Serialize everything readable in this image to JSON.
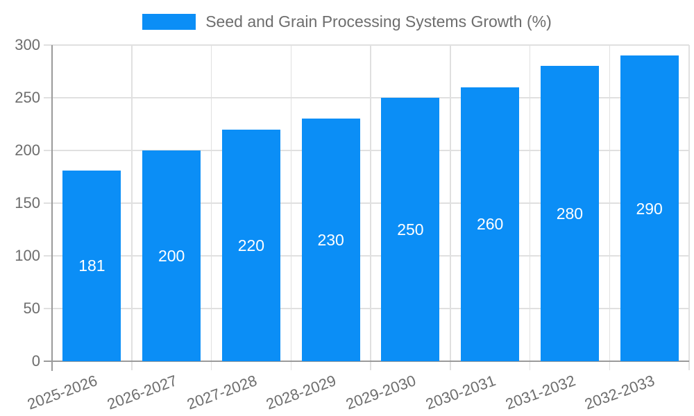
{
  "chart_data": {
    "type": "bar",
    "title": "Seed and Grain Processing Systems Growth (%)",
    "categories": [
      "2025-2026",
      "2026-2027",
      "2027-2028",
      "2028-2029",
      "2029-2030",
      "2030-2031",
      "2031-2032",
      "2032-2033"
    ],
    "values": [
      181,
      200,
      220,
      230,
      250,
      260,
      280,
      290
    ],
    "xlabel": "",
    "ylabel": "",
    "ylim": [
      0,
      300
    ],
    "yticks": [
      0,
      50,
      100,
      150,
      200,
      250,
      300
    ],
    "grid": true,
    "legend_position": "top",
    "value_labels_shown": true
  },
  "legend": {
    "label": "Seed and Grain Processing Systems Growth (%)"
  },
  "colors": {
    "bar": "#0b8ef6",
    "grid": "#e0e0e0",
    "axis": "#9a9a9a",
    "tick_text": "#6d6d6d",
    "legend_text": "#6d6d6d",
    "value_label_text": "#ffffff",
    "background": "#ffffff"
  }
}
